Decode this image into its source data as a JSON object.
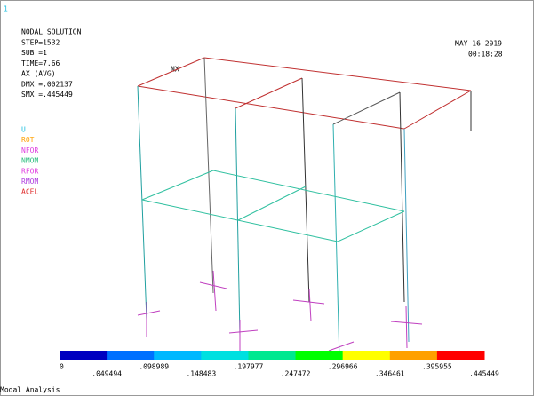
{
  "window_number": "1",
  "info": {
    "title": "NODAL SOLUTION",
    "lines": [
      "STEP=1532",
      "SUB =1",
      "TIME=7.66",
      "AX        (AVG)",
      "DMX =.002137",
      "SMX =.445449"
    ]
  },
  "date": "MAY 16 2019",
  "time": "00:18:28",
  "legend": [
    "U",
    "ROT",
    "NFOR",
    "NMOM",
    "RFOR",
    "RMOM",
    "ACEL"
  ],
  "node_label": "NX",
  "colorbar": {
    "labels": [
      "0",
      ".049494",
      ".098989",
      ".148483",
      ".197977",
      ".247472",
      ".296966",
      ".346461",
      ".395955",
      ".445449"
    ]
  },
  "footer": "Modal Analysis"
}
